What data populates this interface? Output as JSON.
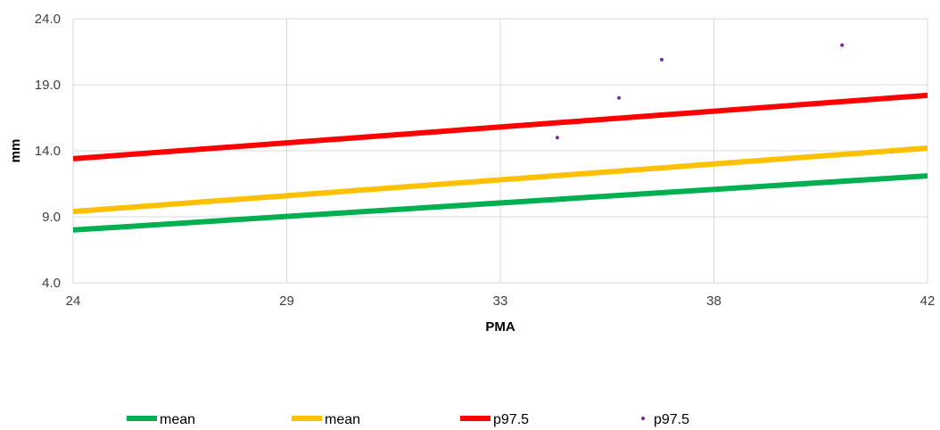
{
  "chart_data": {
    "type": "line",
    "title": "",
    "xlabel": "PMA",
    "ylabel": "mm",
    "x_ticks": [
      "24",
      "29",
      "33",
      "38",
      "42"
    ],
    "y_ticks": [
      "4.0",
      "9.0",
      "14.0",
      "19.0",
      "24.0"
    ],
    "xlim": [
      24,
      42
    ],
    "ylim": [
      4,
      24
    ],
    "grid": true,
    "legend_position": "bottom",
    "series": [
      {
        "name": "mean",
        "type": "line",
        "color": "#00b050",
        "x": [
          24,
          42
        ],
        "y": [
          8.0,
          12.1
        ]
      },
      {
        "name": "mean",
        "type": "line",
        "color": "#ffc000",
        "x": [
          24,
          42
        ],
        "y": [
          9.4,
          14.2
        ]
      },
      {
        "name": "p97.5",
        "type": "line",
        "color": "#ff0000",
        "x": [
          24,
          42
        ],
        "y": [
          13.4,
          18.2
        ]
      },
      {
        "name": "p97.5",
        "type": "scatter",
        "color": "#7030a0",
        "x": [
          34.2,
          35.5,
          36.4,
          40.2
        ],
        "y": [
          15.0,
          18.0,
          20.9,
          22.0
        ]
      }
    ]
  }
}
